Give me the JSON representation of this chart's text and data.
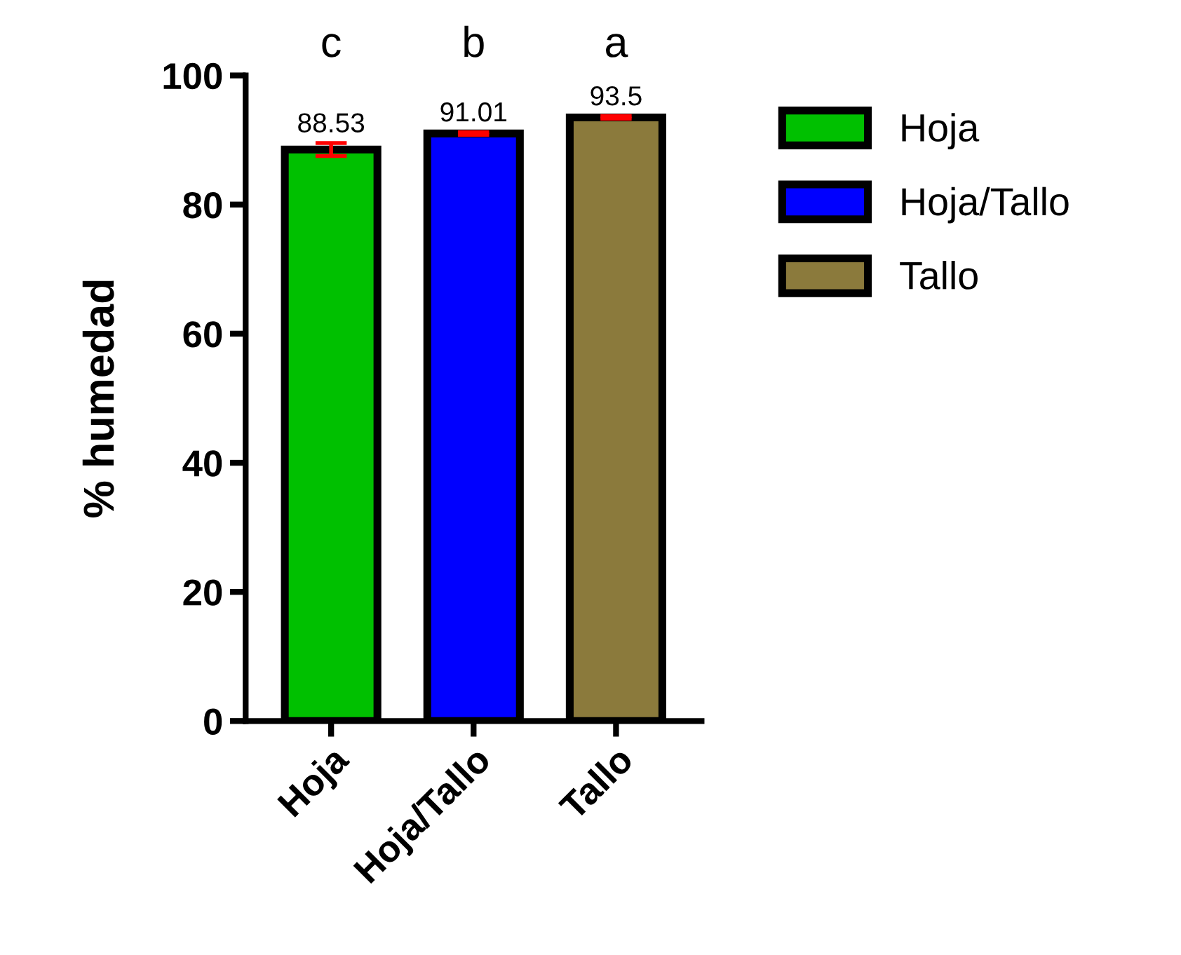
{
  "chart_data": {
    "type": "bar",
    "ylabel": "% humedad",
    "categories": [
      "Hoja",
      "Hoja/Tallo",
      "Tallo"
    ],
    "series": [
      {
        "name": "Hoja",
        "color": "#00c000",
        "values": [
          88.53,
          null,
          null
        ],
        "errors": [
          1.0,
          null,
          null
        ]
      },
      {
        "name": "Hoja/Tallo",
        "color": "#0000ff",
        "values": [
          null,
          91.01,
          null
        ],
        "errors": [
          null,
          0.2,
          null
        ]
      },
      {
        "name": "Tallo",
        "color": "#8b7a3c",
        "values": [
          null,
          null,
          93.5
        ],
        "errors": [
          null,
          null,
          0.2
        ]
      }
    ],
    "value_labels": [
      "88.53",
      "91.01",
      "93.5"
    ],
    "annotations": [
      "c",
      "b",
      "a"
    ],
    "ylim": [
      0,
      100
    ],
    "yticks": [
      0,
      20,
      40,
      60,
      80,
      100
    ],
    "grid": false,
    "legend": "right"
  }
}
